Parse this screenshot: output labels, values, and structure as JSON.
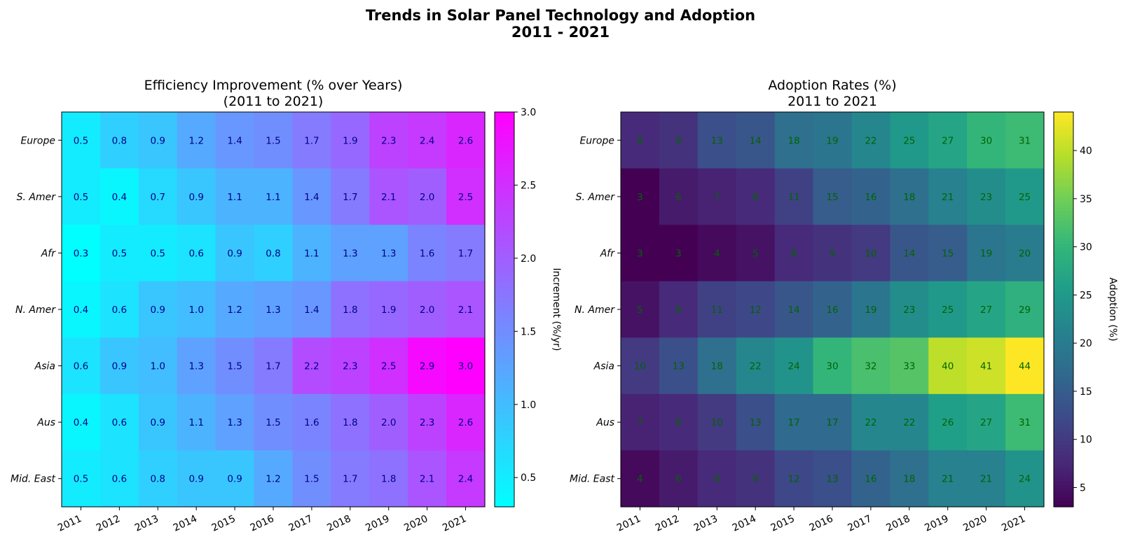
{
  "figure": {
    "title_line1": "Trends in Solar Panel Technology and Adoption",
    "title_line2": "2011 - 2021"
  },
  "chart_data": [
    {
      "type": "heatmap",
      "title": [
        "Efficiency Improvement (% over Years)",
        "(2011 to 2021)"
      ],
      "x_categories": [
        "2011",
        "2012",
        "2013",
        "2014",
        "2015",
        "2016",
        "2017",
        "2018",
        "2019",
        "2020",
        "2021"
      ],
      "y_categories": [
        "Europe",
        "S. Amer",
        "Afr",
        "N. Amer",
        "Asia",
        "Aus",
        "Mid. East"
      ],
      "values": [
        [
          0.5,
          0.8,
          0.9,
          1.2,
          1.4,
          1.5,
          1.7,
          1.9,
          2.3,
          2.4,
          2.6
        ],
        [
          0.5,
          0.4,
          0.7,
          0.9,
          1.1,
          1.1,
          1.4,
          1.7,
          2.1,
          2.0,
          2.5
        ],
        [
          0.3,
          0.5,
          0.5,
          0.6,
          0.9,
          0.8,
          1.1,
          1.3,
          1.3,
          1.6,
          1.7
        ],
        [
          0.4,
          0.6,
          0.9,
          1.0,
          1.2,
          1.3,
          1.4,
          1.8,
          1.9,
          2.0,
          2.1
        ],
        [
          0.6,
          0.9,
          1.0,
          1.3,
          1.5,
          1.7,
          2.2,
          2.3,
          2.5,
          2.9,
          3.0
        ],
        [
          0.4,
          0.6,
          0.9,
          1.1,
          1.3,
          1.5,
          1.6,
          1.8,
          2.0,
          2.3,
          2.6
        ],
        [
          0.5,
          0.6,
          0.8,
          0.9,
          0.9,
          1.2,
          1.5,
          1.7,
          1.8,
          2.1,
          2.4
        ]
      ],
      "value_decimals": 1,
      "colormap": "cool",
      "colormap_stops": [
        "#00ffff",
        "#ff00ff"
      ],
      "annotation_color": "#00008b",
      "vmin": 0.3,
      "vmax": 3.0,
      "colorbar_label": "Increment (%/yr)",
      "colorbar_ticks": [
        "0.5",
        "1.0",
        "1.5",
        "2.0",
        "2.5",
        "3.0"
      ]
    },
    {
      "type": "heatmap",
      "title": [
        "Adoption Rates (%)",
        "2011 to 2021"
      ],
      "x_categories": [
        "2011",
        "2012",
        "2013",
        "2014",
        "2015",
        "2016",
        "2017",
        "2018",
        "2019",
        "2020",
        "2021"
      ],
      "y_categories": [
        "Europe",
        "S. Amer",
        "Afr",
        "N. Amer",
        "Asia",
        "Aus",
        "Mid. East"
      ],
      "values": [
        [
          8,
          9,
          13,
          14,
          18,
          19,
          22,
          25,
          27,
          30,
          31
        ],
        [
          3,
          6,
          7,
          8,
          11,
          15,
          16,
          18,
          21,
          23,
          25
        ],
        [
          3,
          3,
          4,
          5,
          8,
          9,
          10,
          14,
          15,
          19,
          20
        ],
        [
          5,
          8,
          11,
          12,
          14,
          16,
          19,
          23,
          25,
          27,
          29
        ],
        [
          10,
          13,
          18,
          22,
          24,
          30,
          32,
          33,
          40,
          41,
          44
        ],
        [
          7,
          8,
          10,
          13,
          17,
          17,
          22,
          22,
          26,
          27,
          31
        ],
        [
          4,
          6,
          8,
          9,
          12,
          13,
          16,
          18,
          21,
          21,
          24
        ]
      ],
      "value_decimals": 0,
      "colormap": "viridis",
      "colormap_stops": [
        "#440154",
        "#482878",
        "#3e4989",
        "#31688e",
        "#26828e",
        "#1f9e89",
        "#35b779",
        "#6ece58",
        "#b5de2b",
        "#fde725"
      ],
      "annotation_color": "#006400",
      "vmin": 3,
      "vmax": 44,
      "colorbar_label": "Adoption (%)",
      "colorbar_ticks": [
        "5",
        "10",
        "15",
        "20",
        "25",
        "30",
        "35",
        "40"
      ]
    }
  ]
}
